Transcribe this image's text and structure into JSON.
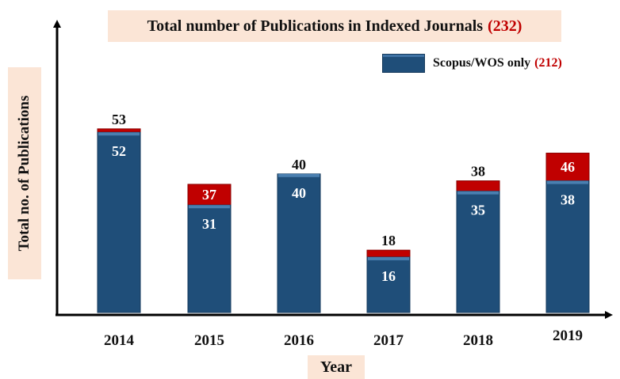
{
  "title": {
    "text": "Total number of Publications in Indexed Journals",
    "highlight": "(232)"
  },
  "legend": {
    "label": "Scopus/WOS only",
    "highlight": "(212)"
  },
  "axes": {
    "xlabel": "Year",
    "ylabel": "Total no. of Publications"
  },
  "colors": {
    "scopus": "#1f4e79",
    "total_cap": "#c00000",
    "highlight_text": "#c00000",
    "label_box": "#fbe5d6"
  },
  "chart_data": {
    "type": "bar",
    "categories": [
      "2014",
      "2015",
      "2016",
      "2017",
      "2018",
      "2019"
    ],
    "series": [
      {
        "name": "Scopus/WOS only",
        "values": [
          52,
          31,
          40,
          16,
          35,
          38
        ]
      },
      {
        "values": [
          53,
          37,
          40,
          18,
          38,
          46
        ]
      }
    ],
    "title": "Total number of Publications in Indexed Journals (232)",
    "xlabel": "Year",
    "ylabel": "Total no. of Publications",
    "ylim": [
      0,
      70
    ],
    "grid": false,
    "legend": "top-right"
  }
}
